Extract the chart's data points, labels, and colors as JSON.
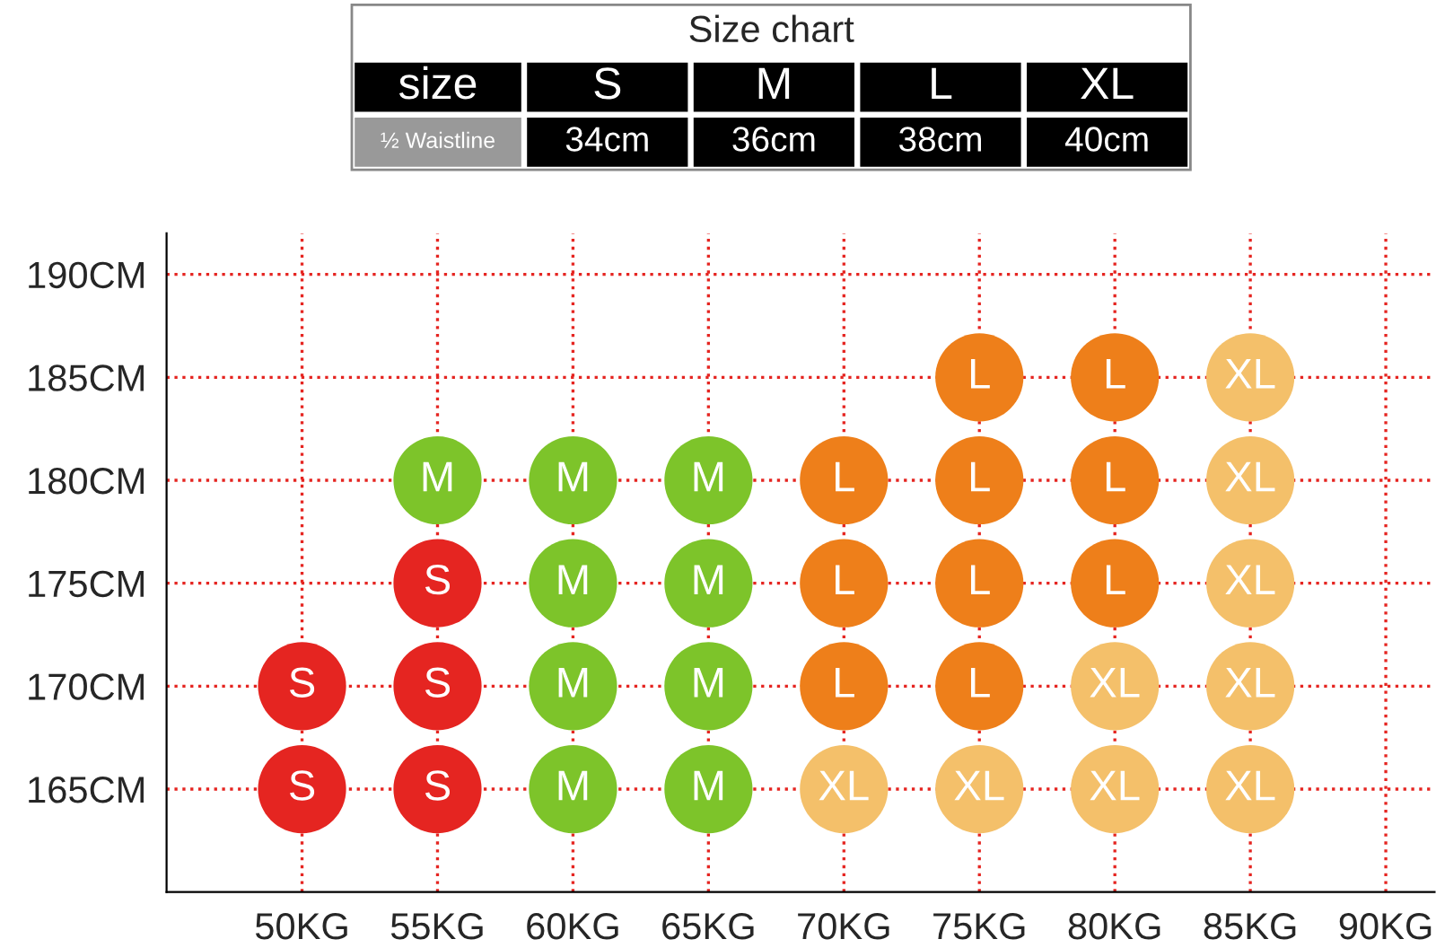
{
  "chart_data": {
    "type": "scatter",
    "legend": false,
    "grid": true,
    "marker": "circle",
    "xlim": [
      45,
      91.8
    ],
    "ylim": [
      160,
      192
    ],
    "xticks": [
      {
        "value": 50,
        "label": "50KG"
      },
      {
        "value": 55,
        "label": "55KG"
      },
      {
        "value": 60,
        "label": "60KG"
      },
      {
        "value": 65,
        "label": "65KG"
      },
      {
        "value": 70,
        "label": "70KG"
      },
      {
        "value": 75,
        "label": "75KG"
      },
      {
        "value": 80,
        "label": "80KG"
      },
      {
        "value": 85,
        "label": "85KG"
      },
      {
        "value": 90,
        "label": "90KG"
      }
    ],
    "yticks": [
      {
        "value": 165,
        "label": "165CM"
      },
      {
        "value": 170,
        "label": "170CM"
      },
      {
        "value": 175,
        "label": "175CM"
      },
      {
        "value": 180,
        "label": "180CM"
      },
      {
        "value": 185,
        "label": "185CM"
      },
      {
        "value": 190,
        "label": "190CM"
      }
    ],
    "series": [
      {
        "name": "S",
        "color": "#e52521",
        "x": [
          50,
          50,
          55,
          55,
          55
        ],
        "values": [
          170,
          165,
          175,
          170,
          165
        ]
      },
      {
        "name": "M",
        "color": "#7dc42a",
        "x": [
          55,
          60,
          60,
          60,
          60,
          65,
          65,
          65,
          65
        ],
        "values": [
          180,
          180,
          175,
          170,
          165,
          180,
          175,
          170,
          165
        ]
      },
      {
        "name": "L",
        "color": "#ee7f1a",
        "x": [
          70,
          70,
          70,
          75,
          75,
          75,
          75,
          80,
          80,
          80
        ],
        "values": [
          180,
          175,
          170,
          185,
          180,
          175,
          170,
          185,
          180,
          175
        ]
      },
      {
        "name": "XL",
        "color": "#f4c06a",
        "x": [
          70,
          75,
          80,
          80,
          85,
          85,
          85,
          85,
          85
        ],
        "values": [
          165,
          165,
          170,
          165,
          185,
          180,
          175,
          170,
          165
        ]
      }
    ],
    "annotations": [
      "Size chart",
      "size",
      "S",
      "M",
      "L",
      "XL",
      "½ Waistline",
      "34cm",
      "36cm",
      "38cm",
      "40cm"
    ]
  }
}
